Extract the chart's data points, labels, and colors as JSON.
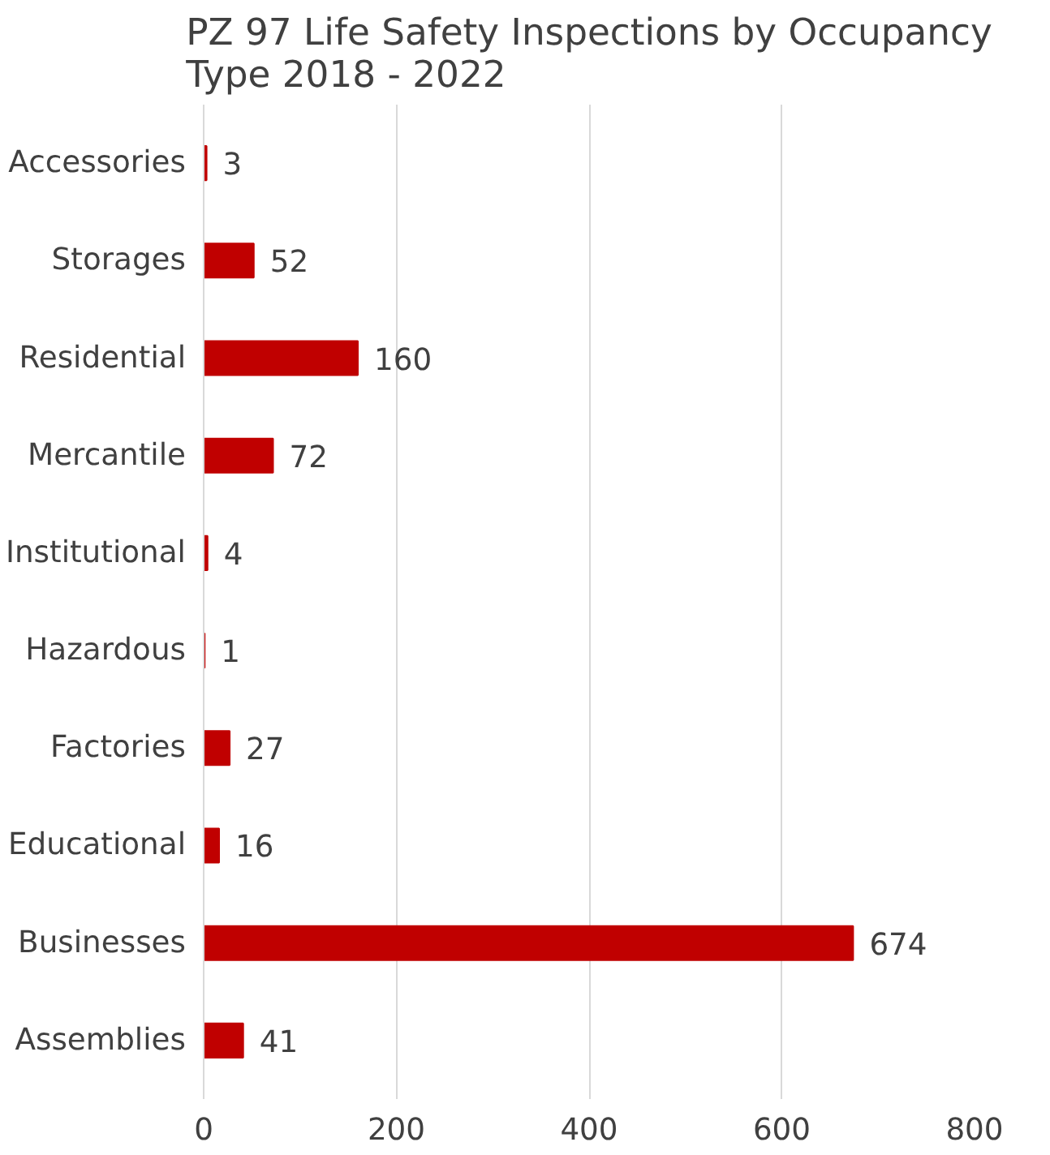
{
  "chart_data": {
    "type": "bar",
    "orientation": "horizontal",
    "title": "PZ 97 Life Safety Inspections by Occupancy Type 2018 - 2022",
    "categories": [
      "Accessories",
      "Storages",
      "Residential",
      "Mercantile",
      "Institutional",
      "Hazardous",
      "Factories",
      "Educational",
      "Businesses",
      "Assemblies"
    ],
    "values": [
      3,
      52,
      160,
      72,
      4,
      1,
      27,
      16,
      674,
      41
    ],
    "color": "#c00000",
    "xlim": [
      0,
      800
    ],
    "xticks": [
      0,
      200,
      400,
      600,
      800
    ],
    "grid": "x",
    "data_labels": true
  }
}
